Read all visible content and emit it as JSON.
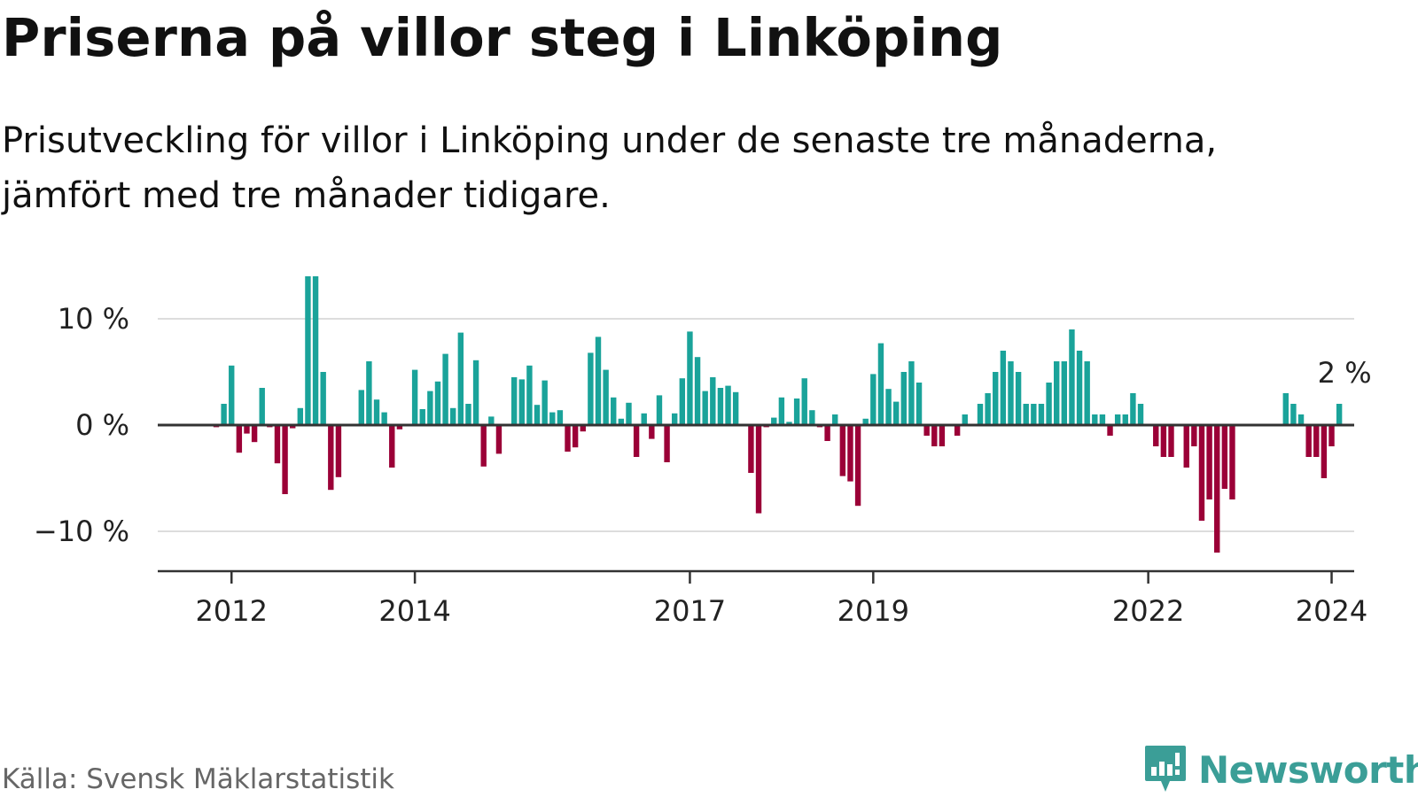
{
  "title": "Priserna på villor steg i Linköping",
  "subtitle": "Prisutveckling för villor i Linköping under de senaste tre månaderna, jämfört med tre månader tidigare.",
  "source": "Källa: Svensk Mäklarstatistik",
  "logo": {
    "text": "Newsworthy",
    "icon": "newsworthy-chart-icon"
  },
  "colors": {
    "positive": "#1aa39a",
    "negative": "#9b0037",
    "grid": "#dddddd",
    "axis": "#333333"
  },
  "chart_data": {
    "type": "bar",
    "title": "Priserna på villor steg i Linköping",
    "xlabel": "",
    "ylabel": "",
    "ylim": [
      -13.5,
      14.5
    ],
    "y_ticks": [
      {
        "value": 10,
        "label": "10 %"
      },
      {
        "value": 0,
        "label": "0 %"
      },
      {
        "value": -10,
        "label": "−10 %"
      }
    ],
    "x_ticks": [
      {
        "year": 2012,
        "label": "2012"
      },
      {
        "year": 2014,
        "label": "2014"
      },
      {
        "year": 2017,
        "label": "2017"
      },
      {
        "year": 2019,
        "label": "2019"
      },
      {
        "year": 2022,
        "label": "2022"
      },
      {
        "year": 2024,
        "label": "2024"
      }
    ],
    "series_start": {
      "year": 2011,
      "month": 11
    },
    "period": "monthly",
    "values": [
      -0.2,
      2.0,
      5.6,
      -2.6,
      -0.8,
      -1.6,
      3.5,
      -0.2,
      -3.6,
      -6.5,
      -0.3,
      1.6,
      14.0,
      14.0,
      5.0,
      -6.1,
      -4.9,
      0,
      0,
      3.3,
      6.0,
      2.4,
      1.2,
      -4.0,
      -0.4,
      0,
      5.2,
      1.5,
      3.2,
      4.1,
      6.7,
      1.6,
      8.7,
      2.0,
      6.1,
      -3.9,
      0.8,
      -2.7,
      0,
      4.5,
      4.3,
      5.6,
      1.9,
      4.2,
      1.2,
      1.4,
      -2.5,
      -2.1,
      -0.6,
      6.8,
      8.3,
      5.2,
      2.6,
      0.6,
      2.1,
      -3.0,
      1.1,
      -1.3,
      2.8,
      -3.5,
      1.1,
      4.4,
      8.8,
      6.4,
      3.2,
      4.5,
      3.5,
      3.7,
      3.1,
      0,
      -4.5,
      -8.3,
      -0.2,
      0.7,
      2.6,
      0.3,
      2.5,
      4.4,
      1.4,
      -0.2,
      -1.5,
      1.0,
      -4.8,
      -5.3,
      -7.6,
      0.6,
      4.8,
      7.7,
      3.4,
      2.2,
      5.0,
      6.0,
      4.0,
      -1.0,
      -2.0,
      -2.0,
      0,
      -1.0,
      1.0,
      0,
      2.0,
      3.0,
      5.0,
      7.0,
      6.0,
      5.0,
      2.0,
      2.0,
      2.0,
      4.0,
      6.0,
      6.0,
      9.0,
      7.0,
      6.0,
      1.0,
      1.0,
      -1.0,
      1.0,
      1.0,
      3.0,
      2.0,
      0,
      -2.0,
      -3.0,
      -3.0,
      0,
      -4.0,
      -2.0,
      -9.0,
      -7.0,
      -12.0,
      -6.0,
      -7.0,
      0,
      0,
      0,
      0,
      0,
      0,
      3.0,
      2.0,
      1.0,
      -3.0,
      -3.0,
      -5.0,
      -2.0,
      2.0
    ],
    "annotation": {
      "label": "2 %",
      "target": "last-bar"
    }
  }
}
